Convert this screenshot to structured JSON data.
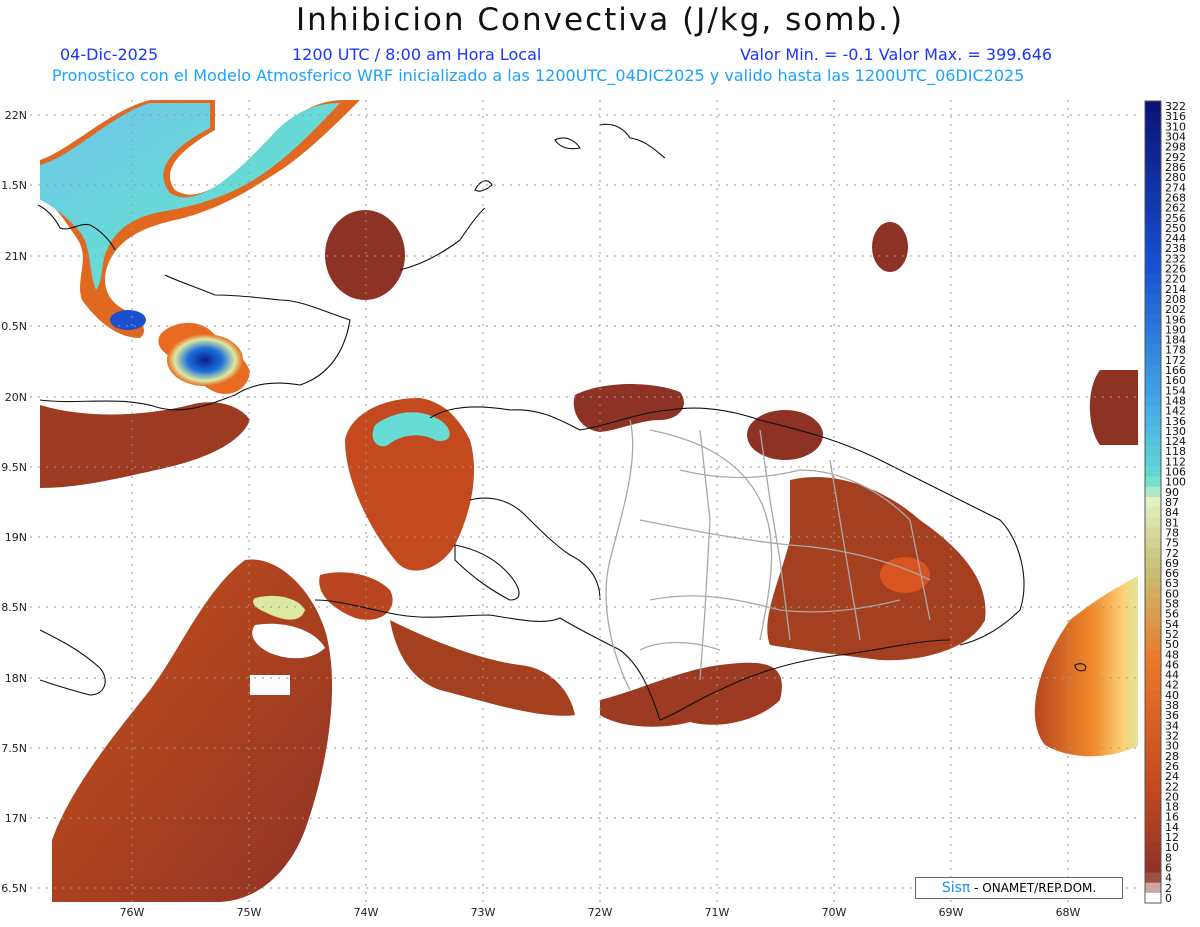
{
  "header": {
    "title": "Inhibicion Convectiva (J/kg, somb.)",
    "date": "04-Dic-2025",
    "time": "1200 UTC / 8:00 am Hora Local",
    "min_max": "Valor Min. = -0.1  Valor Max. = 399.646",
    "model_line": "Pronostico con el Modelo Atmosferico WRF inicializado a las 1200UTC_04DIC2025 y valido hasta las  1200UTC_06DIC2025"
  },
  "map": {
    "lat_labels": [
      "22N",
      "1.5N",
      "21N",
      "0.5N",
      "20N",
      "9.5N",
      "19N",
      "8.5N",
      "18N",
      "7.5N",
      "17N",
      "6.5N"
    ],
    "lon_labels": [
      "76W",
      "75W",
      "74W",
      "73W",
      "72W",
      "71W",
      "70W",
      "69W",
      "68W"
    ],
    "region": "Hispaniola and surrounding Caribbean",
    "colors": {
      "low": "#8e3225",
      "mid": "#d9541e",
      "high_orange": "#f08a2a",
      "yellow_green": "#dde8a0",
      "cyan": "#66dcd4",
      "blue": "#1a6fdc",
      "dark_blue": "#0a1f8c",
      "coast": "#111111",
      "provinces": "#a8a8a8",
      "grid": "#9a9a9a"
    }
  },
  "colorbar": {
    "labels": [
      "322",
      "316",
      "310",
      "304",
      "298",
      "292",
      "286",
      "280",
      "274",
      "268",
      "262",
      "256",
      "250",
      "244",
      "238",
      "232",
      "226",
      "220",
      "214",
      "208",
      "202",
      "196",
      "190",
      "184",
      "178",
      "172",
      "166",
      "160",
      "154",
      "148",
      "142",
      "136",
      "130",
      "124",
      "118",
      "112",
      "106",
      "100",
      "90",
      "87",
      "84",
      "81",
      "78",
      "75",
      "72",
      "69",
      "66",
      "63",
      "60",
      "58",
      "56",
      "54",
      "52",
      "50",
      "48",
      "46",
      "44",
      "42",
      "40",
      "38",
      "36",
      "34",
      "32",
      "30",
      "28",
      "26",
      "24",
      "22",
      "20",
      "18",
      "16",
      "14",
      "12",
      "10",
      "8",
      "6",
      "4",
      "2",
      "0"
    ]
  },
  "credit": {
    "brand": "Sisπ",
    "text": "- ONAMET/REP.DOM."
  }
}
